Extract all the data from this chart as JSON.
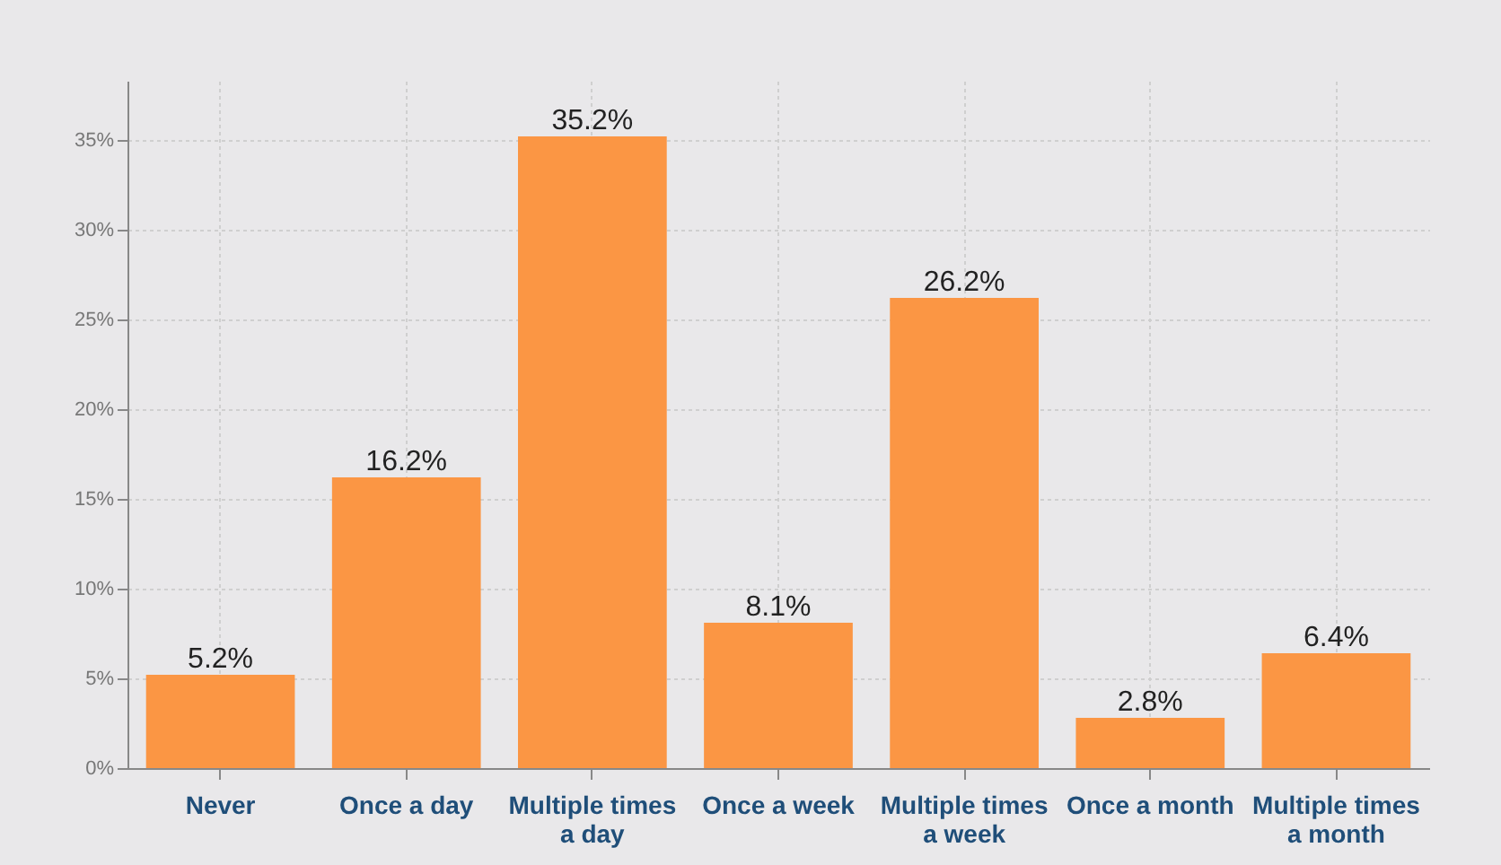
{
  "chart_data": {
    "type": "bar",
    "categories": [
      "Never",
      "Once a day",
      "Multiple times a day",
      "Once a week",
      "Multiple times a week",
      "Once a month",
      "Multiple times a month"
    ],
    "values": [
      5.2,
      16.2,
      35.2,
      8.1,
      26.2,
      2.8,
      6.4
    ],
    "value_labels": [
      "5.2%",
      "16.2%",
      "35.2%",
      "8.1%",
      "26.2%",
      "2.8%",
      "6.4%"
    ],
    "color": "#fb9644",
    "ylim": [
      0,
      38.3
    ],
    "yticks": [
      {
        "value": 0,
        "label": "0%"
      },
      {
        "value": 5,
        "label": "5%"
      },
      {
        "value": 10,
        "label": "10%"
      },
      {
        "value": 15,
        "label": "15%"
      },
      {
        "value": 20,
        "label": "20%"
      },
      {
        "value": 25,
        "label": "25%"
      },
      {
        "value": 30,
        "label": "30%"
      },
      {
        "value": 35,
        "label": "35%"
      }
    ],
    "grid": true
  }
}
